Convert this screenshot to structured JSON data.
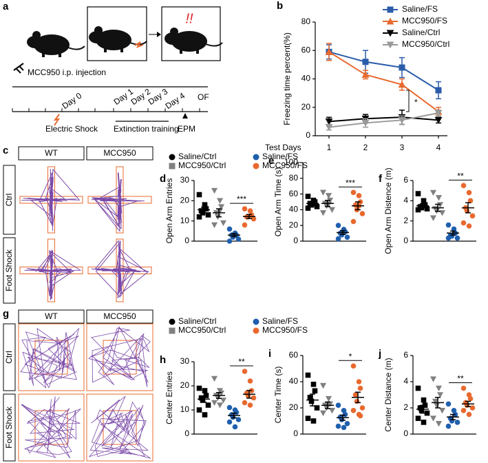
{
  "schematic": {
    "label": "a",
    "injection": "MCC950 i.p. injection",
    "days": [
      "Day 0",
      "Day 1",
      "Day 2",
      "Day 3",
      "Day 4"
    ],
    "of": "OF",
    "shock": "Electric Shock",
    "extinction": "Extinction training",
    "epm": "EPM",
    "alert": "!!"
  },
  "maze_tracks": {
    "label": "c",
    "columns": [
      "WT",
      "MCC950"
    ],
    "rows": [
      "Ctrl",
      "Foot Shock"
    ]
  },
  "open_field_tracks": {
    "label": "g",
    "columns": [
      "WT",
      "MCC950"
    ],
    "rows": [
      "Ctrl",
      "Foot Shock"
    ]
  },
  "groups": [
    {
      "name": "Saline/Ctrl",
      "color": "#000000",
      "legend_marker": "circle",
      "marker": "square"
    },
    {
      "name": "MCC950/Ctrl",
      "color": "#808080",
      "legend_marker": "square",
      "marker": "triangle-down"
    },
    {
      "name": "Saline/FS",
      "color": "#1f5fae",
      "legend_marker": "circle",
      "marker": "circle"
    },
    {
      "name": "MCC950/FS",
      "color": "#e8692e",
      "legend_marker": "circle",
      "marker": "circle"
    }
  ],
  "chart_data": [
    {
      "type": "line",
      "label": "b",
      "ylabel": "Freezing time percent(%)",
      "xlabel": "Test Days",
      "categories": [
        "1",
        "2",
        "3",
        "4"
      ],
      "ylim": [
        0,
        80
      ],
      "yticks": [
        0,
        20,
        40,
        60,
        80
      ],
      "annotation": "*",
      "series": [
        {
          "name": "Saline/FS",
          "color": "#2a5caa",
          "marker": "square",
          "values": [
            59,
            52,
            48,
            32
          ],
          "err": [
            5,
            8,
            7,
            6
          ]
        },
        {
          "name": "MCC950/FS",
          "color": "#e8692e",
          "marker": "triangle-up",
          "values": [
            59,
            43,
            36,
            17
          ],
          "err": [
            6,
            3,
            4,
            3
          ]
        },
        {
          "name": "Saline/Ctrl",
          "color": "#000000",
          "marker": "triangle-down",
          "values": [
            10,
            12,
            13,
            11
          ],
          "err": [
            3,
            3,
            5,
            2
          ]
        },
        {
          "name": "MCC950/Ctrl",
          "color": "#999999",
          "marker": "triangle-down",
          "values": [
            6,
            9,
            11,
            16
          ],
          "err": [
            2,
            3,
            3,
            2
          ]
        }
      ]
    },
    {
      "type": "dot",
      "label": "d",
      "ylabel": "Open Arm Entries",
      "ylim": [
        0,
        30
      ],
      "yticks": [
        0,
        10,
        20,
        30
      ],
      "annotation": "***",
      "series": [
        {
          "values": [
            23,
            18,
            16,
            15,
            14,
            13,
            12,
            17
          ],
          "mean": 15.5,
          "sem": 1.3
        },
        {
          "values": [
            25,
            20,
            17,
            14,
            12,
            9,
            8,
            15
          ],
          "mean": 14,
          "sem": 2
        },
        {
          "values": [
            6,
            4,
            3,
            3,
            2,
            1,
            0
          ],
          "mean": 3,
          "sem": 0.8
        },
        {
          "values": [
            16,
            15,
            13,
            12,
            12,
            11,
            8
          ],
          "mean": 12.2,
          "sem": 1
        }
      ]
    },
    {
      "type": "dot",
      "label": "e",
      "ylabel": "Open Arm Time (s)",
      "ylim": [
        0,
        100
      ],
      "yticks": [
        0,
        20,
        40,
        60,
        80,
        100
      ],
      "annotation": "***",
      "series": [
        {
          "values": [
            57,
            52,
            50,
            48,
            46,
            44,
            42,
            48
          ],
          "mean": 48,
          "sem": 2
        },
        {
          "values": [
            62,
            58,
            52,
            48,
            45,
            40,
            36,
            47
          ],
          "mean": 48,
          "sem": 4
        },
        {
          "values": [
            20,
            15,
            12,
            10,
            8,
            5,
            3
          ],
          "mean": 11,
          "sem": 2.5
        },
        {
          "values": [
            62,
            58,
            50,
            46,
            40,
            35,
            25,
            45
          ],
          "mean": 45,
          "sem": 5
        }
      ]
    },
    {
      "type": "dot",
      "label": "f",
      "ylabel": "Open Arm Distence (m)",
      "ylim": [
        0,
        6
      ],
      "yticks": [
        0,
        2,
        4,
        6
      ],
      "annotation": "**",
      "series": [
        {
          "values": [
            4.7,
            4,
            3.6,
            3.4,
            3.3,
            3.2,
            3.1,
            3.5
          ],
          "mean": 3.5,
          "sem": 0.2
        },
        {
          "values": [
            4.8,
            4.3,
            3.6,
            3.2,
            3,
            2.8,
            2.3
          ],
          "mean": 3.3,
          "sem": 0.35
        },
        {
          "values": [
            1.6,
            1.2,
            0.8,
            0.6,
            0.5,
            0.3,
            0.3
          ],
          "mean": 0.8,
          "sem": 0.2
        },
        {
          "values": [
            5.5,
            4.8,
            4,
            3.3,
            3,
            2.5,
            1.8,
            1.5
          ],
          "mean": 3.3,
          "sem": 0.5
        }
      ]
    },
    {
      "type": "dot",
      "label": "h",
      "ylabel": "Center Entries",
      "ylim": [
        0,
        30
      ],
      "yticks": [
        0,
        10,
        20,
        30
      ],
      "annotation": "**",
      "series": [
        {
          "values": [
            19,
            18,
            16,
            15,
            14,
            12,
            10,
            8
          ],
          "mean": 14.5,
          "sem": 1.3
        },
        {
          "values": [
            23,
            18,
            17,
            16,
            15,
            14,
            13,
            12
          ],
          "mean": 16,
          "sem": 1.2
        },
        {
          "values": [
            11,
            10,
            9,
            8,
            7,
            6,
            5,
            3
          ],
          "mean": 7.7,
          "sem": 1
        },
        {
          "values": [
            26,
            22,
            18,
            17,
            16,
            15,
            13,
            12
          ],
          "mean": 16.5,
          "sem": 1.6
        }
      ]
    },
    {
      "type": "dot",
      "label": "i",
      "ylabel": "Center Time (s)",
      "ylim": [
        0,
        60
      ],
      "yticks": [
        0,
        20,
        40,
        60
      ],
      "annotation": "*",
      "series": [
        {
          "values": [
            45,
            38,
            33,
            28,
            25,
            20,
            12,
            10
          ],
          "mean": 26,
          "sem": 4.5
        },
        {
          "values": [
            37,
            27,
            23,
            22,
            20,
            18,
            16
          ],
          "mean": 22,
          "sem": 2.5
        },
        {
          "values": [
            22,
            18,
            15,
            13,
            11,
            8,
            6,
            5
          ],
          "mean": 12.5,
          "sem": 2
        },
        {
          "values": [
            52,
            40,
            35,
            30,
            25,
            20,
            18,
            15,
            14
          ],
          "mean": 28,
          "sem": 4
        }
      ]
    },
    {
      "type": "dot",
      "label": "j",
      "ylabel": "Center Distance (m)",
      "ylim": [
        0,
        6
      ],
      "yticks": [
        0,
        2,
        4,
        6
      ],
      "annotation": "**",
      "series": [
        {
          "values": [
            3.5,
            2.6,
            2.2,
            2,
            1.8,
            1.6,
            1.2,
            0.9
          ],
          "mean": 1.9,
          "sem": 0.3
        },
        {
          "values": [
            4.2,
            3.5,
            3,
            2.5,
            2.2,
            1.8,
            1.2,
            0.8
          ],
          "mean": 2.4,
          "sem": 0.4
        },
        {
          "values": [
            2.3,
            1.8,
            1.5,
            1.2,
            1,
            0.9,
            0.6
          ],
          "mean": 1.3,
          "sem": 0.2
        },
        {
          "values": [
            3.5,
            3,
            2.7,
            2.4,
            2.2,
            2,
            1.8,
            1.5
          ],
          "mean": 2.3,
          "sem": 0.2
        }
      ]
    }
  ]
}
